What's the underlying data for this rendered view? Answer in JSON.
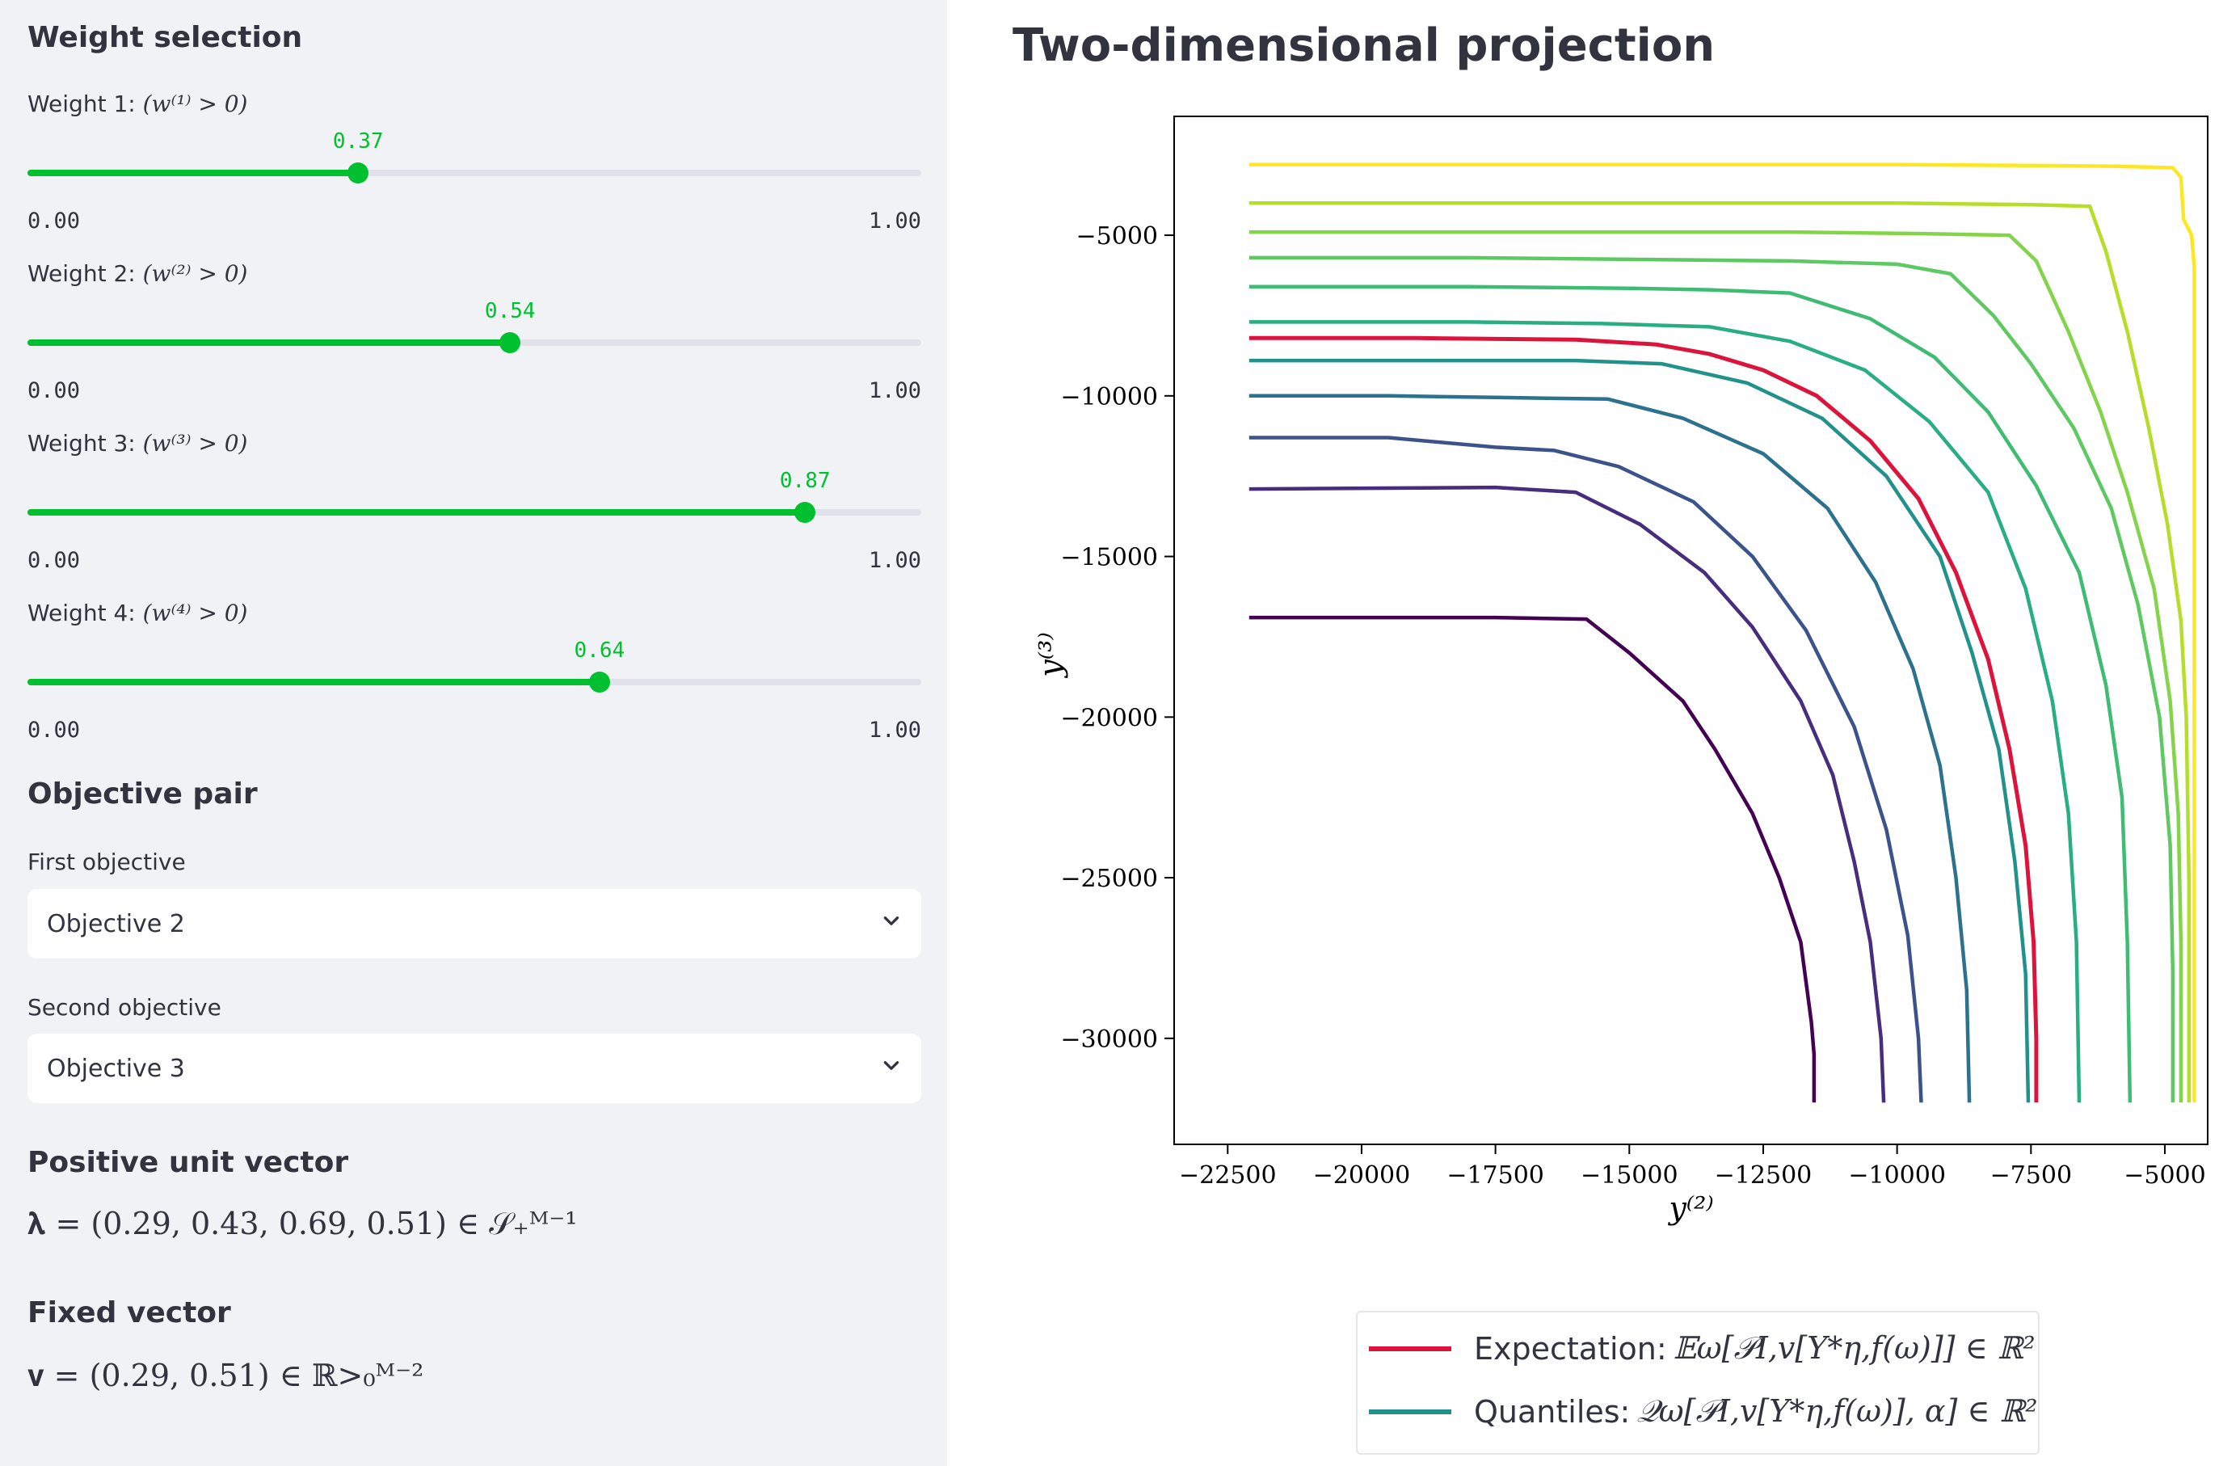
{
  "sidebar": {
    "weight_selection_title": "Weight selection",
    "sliders": [
      {
        "label_prefix": "Weight 1:",
        "label_math": "(w⁽¹⁾ > 0)",
        "value": 0.37,
        "value_text": "0.37",
        "min_text": "0.00",
        "max_text": "1.00"
      },
      {
        "label_prefix": "Weight 2:",
        "label_math": "(w⁽²⁾ > 0)",
        "value": 0.54,
        "value_text": "0.54",
        "min_text": "0.00",
        "max_text": "1.00"
      },
      {
        "label_prefix": "Weight 3:",
        "label_math": "(w⁽³⁾ > 0)",
        "value": 0.87,
        "value_text": "0.87",
        "min_text": "0.00",
        "max_text": "1.00"
      },
      {
        "label_prefix": "Weight 4:",
        "label_math": "(w⁽⁴⁾ > 0)",
        "value": 0.64,
        "value_text": "0.64",
        "min_text": "0.00",
        "max_text": "1.00"
      }
    ],
    "objective_pair_title": "Objective pair",
    "first_objective_label": "First objective",
    "first_objective_value": "Objective 2",
    "second_objective_label": "Second objective",
    "second_objective_value": "Objective 3",
    "unit_vector_title": "Positive unit vector",
    "unit_vector_formula": "𝛌 = (0.29, 0.43, 0.69, 0.51) ∈ 𝒮₊ᴹ⁻¹",
    "fixed_vector_title": "Fixed vector",
    "fixed_vector_formula": "𝐯 = (0.29, 0.51) ∈ ℝ>₀ᴹ⁻²"
  },
  "main": {
    "title": "Two-dimensional projection"
  },
  "legend": {
    "expectation_label": "Expectation:",
    "expectation_math": "𝔼ω[𝒫I,v[Y*η,f(ω)]] ∈ ℝ²",
    "quantiles_label": "Quantiles:",
    "quantiles_math": "𝒬ω[𝒫I,v[Y*η,f(ω)], α] ∈ ℝ²",
    "expectation_color": "#dc143c",
    "quantiles_color": "#21918c"
  },
  "chart_data": {
    "type": "line",
    "title": "",
    "xlabel": "y⁽²⁾",
    "ylabel": "y⁽³⁾",
    "xlim": [
      -23500,
      -4200
    ],
    "ylim": [
      -33300,
      -1300
    ],
    "xticks": [
      -22500,
      -20000,
      -17500,
      -15000,
      -12500,
      -10000,
      -7500,
      -5000
    ],
    "yticks": [
      -5000,
      -10000,
      -15000,
      -20000,
      -25000,
      -30000
    ],
    "xtick_labels": [
      "−22500",
      "−20000",
      "−17500",
      "−15000",
      "−12500",
      "−10000",
      "−7500",
      "−5000"
    ],
    "ytick_labels": [
      "−5000",
      "−10000",
      "−15000",
      "−20000",
      "−25000",
      "−30000"
    ],
    "series": [
      {
        "role": "quantile",
        "color": "#440154",
        "points": [
          [
            -22100,
            -16900
          ],
          [
            -17500,
            -16900
          ],
          [
            -15800,
            -16950
          ],
          [
            -15000,
            -18000
          ],
          [
            -14000,
            -19500
          ],
          [
            -13400,
            -21000
          ],
          [
            -12700,
            -23000
          ],
          [
            -12200,
            -25000
          ],
          [
            -11800,
            -27000
          ],
          [
            -11600,
            -29500
          ],
          [
            -11550,
            -30500
          ],
          [
            -11550,
            -32000
          ]
        ]
      },
      {
        "role": "quantile",
        "color": "#472d7b",
        "points": [
          [
            -22100,
            -12900
          ],
          [
            -17500,
            -12850
          ],
          [
            -16000,
            -13000
          ],
          [
            -14800,
            -14000
          ],
          [
            -13600,
            -15500
          ],
          [
            -12700,
            -17200
          ],
          [
            -11800,
            -19500
          ],
          [
            -11200,
            -21800
          ],
          [
            -10800,
            -24500
          ],
          [
            -10500,
            -27000
          ],
          [
            -10300,
            -30000
          ],
          [
            -10250,
            -32000
          ]
        ]
      },
      {
        "role": "quantile",
        "color": "#3b528b",
        "points": [
          [
            -22100,
            -11300
          ],
          [
            -19500,
            -11300
          ],
          [
            -17500,
            -11600
          ],
          [
            -16400,
            -11700
          ],
          [
            -15200,
            -12200
          ],
          [
            -13800,
            -13300
          ],
          [
            -12700,
            -15000
          ],
          [
            -11700,
            -17300
          ],
          [
            -10800,
            -20300
          ],
          [
            -10200,
            -23500
          ],
          [
            -9800,
            -26800
          ],
          [
            -9600,
            -30000
          ],
          [
            -9550,
            -32000
          ]
        ]
      },
      {
        "role": "quantile",
        "color": "#2c728e",
        "points": [
          [
            -22100,
            -10000
          ],
          [
            -19500,
            -10000
          ],
          [
            -17500,
            -10050
          ],
          [
            -15400,
            -10100
          ],
          [
            -14000,
            -10700
          ],
          [
            -12500,
            -11800
          ],
          [
            -11300,
            -13500
          ],
          [
            -10400,
            -15800
          ],
          [
            -9700,
            -18500
          ],
          [
            -9200,
            -21500
          ],
          [
            -8900,
            -25000
          ],
          [
            -8700,
            -28500
          ],
          [
            -8650,
            -32000
          ]
        ]
      },
      {
        "role": "quantile",
        "color": "#21918c",
        "points": [
          [
            -22100,
            -8900
          ],
          [
            -18500,
            -8900
          ],
          [
            -16000,
            -8900
          ],
          [
            -14400,
            -9000
          ],
          [
            -12800,
            -9600
          ],
          [
            -11400,
            -10700
          ],
          [
            -10200,
            -12500
          ],
          [
            -9200,
            -15000
          ],
          [
            -8600,
            -18000
          ],
          [
            -8100,
            -21000
          ],
          [
            -7800,
            -24500
          ],
          [
            -7600,
            -28000
          ],
          [
            -7550,
            -32000
          ]
        ]
      },
      {
        "role": "quantile",
        "color": "#28ae80",
        "points": [
          [
            -22100,
            -7700
          ],
          [
            -18000,
            -7700
          ],
          [
            -15500,
            -7750
          ],
          [
            -13500,
            -7850
          ],
          [
            -12000,
            -8300
          ],
          [
            -10600,
            -9200
          ],
          [
            -9400,
            -10800
          ],
          [
            -8300,
            -13000
          ],
          [
            -7600,
            -16000
          ],
          [
            -7100,
            -19500
          ],
          [
            -6800,
            -23000
          ],
          [
            -6650,
            -27000
          ],
          [
            -6600,
            -32000
          ]
        ]
      },
      {
        "role": "quantile",
        "color": "#3fbc73",
        "points": [
          [
            -22100,
            -6600
          ],
          [
            -18000,
            -6600
          ],
          [
            -15000,
            -6650
          ],
          [
            -13500,
            -6700
          ],
          [
            -12000,
            -6800
          ],
          [
            -10500,
            -7600
          ],
          [
            -9300,
            -8800
          ],
          [
            -8300,
            -10500
          ],
          [
            -7400,
            -12800
          ],
          [
            -6600,
            -15500
          ],
          [
            -6100,
            -19000
          ],
          [
            -5800,
            -22500
          ],
          [
            -5700,
            -27000
          ],
          [
            -5650,
            -32000
          ]
        ]
      },
      {
        "role": "quantile",
        "color": "#5ec962",
        "points": [
          [
            -22100,
            -5700
          ],
          [
            -18000,
            -5700
          ],
          [
            -15000,
            -5750
          ],
          [
            -12000,
            -5800
          ],
          [
            -10000,
            -5900
          ],
          [
            -9000,
            -6200
          ],
          [
            -8200,
            -7500
          ],
          [
            -7500,
            -9000
          ],
          [
            -6700,
            -11000
          ],
          [
            -6000,
            -13500
          ],
          [
            -5500,
            -16500
          ],
          [
            -5100,
            -20000
          ],
          [
            -4900,
            -24000
          ],
          [
            -4850,
            -28000
          ],
          [
            -4850,
            -32000
          ]
        ]
      },
      {
        "role": "quantile",
        "color": "#84d44b",
        "points": [
          [
            -22100,
            -4900
          ],
          [
            -18000,
            -4900
          ],
          [
            -15000,
            -4900
          ],
          [
            -12000,
            -4900
          ],
          [
            -9500,
            -4950
          ],
          [
            -7900,
            -5000
          ],
          [
            -7400,
            -5800
          ],
          [
            -6800,
            -8000
          ],
          [
            -6200,
            -10500
          ],
          [
            -5700,
            -13000
          ],
          [
            -5200,
            -16000
          ],
          [
            -4900,
            -19500
          ],
          [
            -4750,
            -23000
          ],
          [
            -4700,
            -27000
          ],
          [
            -4700,
            -32000
          ]
        ]
      },
      {
        "role": "quantile",
        "color": "#b5de2b",
        "points": [
          [
            -22100,
            -4000
          ],
          [
            -18000,
            -4000
          ],
          [
            -14000,
            -4000
          ],
          [
            -10000,
            -4000
          ],
          [
            -7500,
            -4050
          ],
          [
            -6400,
            -4100
          ],
          [
            -6100,
            -5500
          ],
          [
            -5700,
            -8000
          ],
          [
            -5300,
            -11000
          ],
          [
            -4950,
            -14000
          ],
          [
            -4700,
            -17000
          ],
          [
            -4600,
            -20000
          ],
          [
            -4550,
            -25000
          ],
          [
            -4550,
            -32000
          ]
        ]
      },
      {
        "role": "quantile",
        "color": "#fde725",
        "points": [
          [
            -22100,
            -2800
          ],
          [
            -16000,
            -2800
          ],
          [
            -10000,
            -2800
          ],
          [
            -6000,
            -2850
          ],
          [
            -4850,
            -2900
          ],
          [
            -4700,
            -3200
          ],
          [
            -4650,
            -4500
          ],
          [
            -4500,
            -5000
          ],
          [
            -4450,
            -6000
          ],
          [
            -4450,
            -12000
          ],
          [
            -4450,
            -20000
          ],
          [
            -4450,
            -32000
          ]
        ]
      },
      {
        "role": "expectation",
        "color": "#dc143c",
        "points": [
          [
            -22100,
            -8200
          ],
          [
            -19000,
            -8200
          ],
          [
            -16000,
            -8250
          ],
          [
            -14500,
            -8400
          ],
          [
            -13500,
            -8700
          ],
          [
            -12500,
            -9200
          ],
          [
            -11500,
            -10000
          ],
          [
            -10500,
            -11400
          ],
          [
            -9600,
            -13200
          ],
          [
            -8900,
            -15500
          ],
          [
            -8300,
            -18200
          ],
          [
            -7900,
            -21000
          ],
          [
            -7600,
            -24000
          ],
          [
            -7450,
            -27000
          ],
          [
            -7400,
            -30000
          ],
          [
            -7400,
            -32000
          ]
        ]
      }
    ],
    "grid": false,
    "legend_position": "below"
  }
}
